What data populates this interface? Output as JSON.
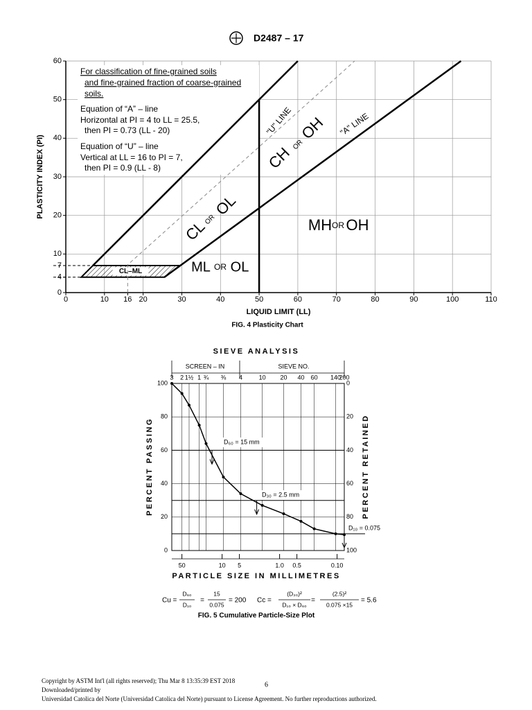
{
  "header": {
    "designation": "D2487 – 17"
  },
  "chart_data": [
    {
      "type": "line",
      "xlabel": "LIQUID LIMIT (LL)",
      "ylabel": "PLASTICITY INDEX (PI)",
      "caption": "FIG. 4 Plasticity Chart",
      "notes": [
        "For classification of fine-grained soils",
        "and fine-grained fraction of coarse-grained",
        "soils.",
        "Equation of “A” – line",
        "Horizontal at PI = 4 to LL = 25.5,",
        "then PI = 0.73 (LL - 20)",
        "Equation of “U” – line",
        "Vertical at LL = 16 to PI = 7,",
        "then PI = 0.9 (LL - 8)"
      ],
      "xlim": [
        0,
        110
      ],
      "ylim": [
        0,
        60
      ],
      "xticks": [
        0,
        10,
        16,
        20,
        30,
        40,
        50,
        60,
        70,
        80,
        90,
        100,
        110
      ],
      "yticks": [
        0,
        4,
        7,
        10,
        20,
        30,
        40,
        50,
        60
      ],
      "grid": true,
      "series": [
        {
          "name": "\"A\" LINE",
          "x": [
            25.5,
            102.2
          ],
          "values": [
            4,
            60
          ],
          "color": "#000000"
        },
        {
          "name": "\"U\" LINE",
          "x": [
            16,
            16,
            74.7
          ],
          "values": [
            0,
            7.2,
            60
          ],
          "color": "#888888",
          "dash": true
        },
        {
          "x": [
            7,
            60
          ],
          "values": [
            7,
            60
          ],
          "color": "#000000"
        },
        {
          "x": [
            50,
            50
          ],
          "values": [
            0,
            50
          ],
          "color": "#000000"
        }
      ],
      "regions": [
        {
          "label": "CL–ML",
          "x": [
            4,
            25.5,
            29.5,
            7
          ],
          "values": [
            4,
            4,
            7,
            7
          ]
        }
      ],
      "zone_labels": [
        [
          "CL",
          "OR",
          "OL"
        ],
        [
          "CH",
          "OR",
          "OH"
        ],
        [
          "MH",
          "OR",
          "OH"
        ],
        [
          "ML",
          "OR",
          "OL"
        ]
      ]
    },
    {
      "type": "line",
      "xscale": "log",
      "title": "SIEVE ANALYSIS",
      "top_groups": [
        "SCREEN – IN",
        "SIEVE  NO."
      ],
      "ylabel": "PERCENT PASSING",
      "y2label": "PERCENT RETAINED",
      "xlabel": "PARTICLE SIZE IN MILLIMETRES",
      "caption": "FIG. 5 Cumulative Particle-Size Plot",
      "xlim": [
        75,
        0.075
      ],
      "ylim": [
        0,
        100
      ],
      "y2lim": [
        100,
        0
      ],
      "yticks": [
        0,
        20,
        40,
        60,
        80,
        100
      ],
      "y2ticks": [
        0,
        20,
        40,
        60,
        80,
        100
      ],
      "xticks": [
        50,
        10,
        5,
        {
          "value": 1,
          "label": "1.0"
        },
        0.5,
        {
          "value": 0.1,
          "label": "0.10"
        }
      ],
      "x2ticks": [
        {
          "value": 75,
          "label": "3"
        },
        {
          "value": 50,
          "label": "2"
        },
        {
          "value": 37.5,
          "label": "1½"
        },
        {
          "value": 25,
          "label": "1"
        },
        {
          "value": 19,
          "label": "¾"
        },
        {
          "value": 9.5,
          "label": "⅜"
        },
        {
          "value": 4.75,
          "label": "4"
        },
        {
          "value": 2,
          "label": "10"
        },
        {
          "value": 0.85,
          "label": "20"
        },
        {
          "value": 0.425,
          "label": "40"
        },
        {
          "value": 0.25,
          "label": "60"
        },
        {
          "value": 0.106,
          "label": "140"
        },
        {
          "value": 0.075,
          "label": "200"
        }
      ],
      "series": [
        {
          "x": [
            75,
            50,
            37.5,
            25,
            19,
            9.5,
            4.75,
            2,
            0.85,
            0.425,
            0.25,
            0.106,
            0.075
          ],
          "values": [
            100,
            94,
            87,
            75,
            64,
            44,
            34,
            27,
            22,
            17.5,
            13,
            10,
            9.5
          ],
          "color": "#000000"
        }
      ],
      "markers": [
        {
          "label": "D₆₀ = 15 mm",
          "x": 15,
          "y": 60
        },
        {
          "label": "D₃₀ = 2.5 mm",
          "x": 2.5,
          "y": 30
        },
        {
          "label": "D₁₀ = 0.075",
          "x": 0.075,
          "y": 10
        }
      ],
      "formulas": {
        "cu": [
          "Cu =",
          "D₆₀",
          "D₁₀",
          "=",
          "15",
          "0.075",
          "= 200"
        ],
        "cc": [
          "Cc =",
          "(D₃₀)²",
          "D₁₀ × D₆₀",
          "=",
          "(2.5)²",
          "0.075 ×15",
          "= 5.6"
        ]
      }
    }
  ],
  "footer": {
    "copyright": "Copyright by ASTM Int'l (all rights reserved); Thu Mar  8 13:35:39 EST 2018",
    "page": "6",
    "downloaded": "Downloaded/printed by",
    "license": "Universidad Catolica del Norte (Universidad Catolica del Norte) pursuant to License Agreement. No further reproductions authorized."
  }
}
